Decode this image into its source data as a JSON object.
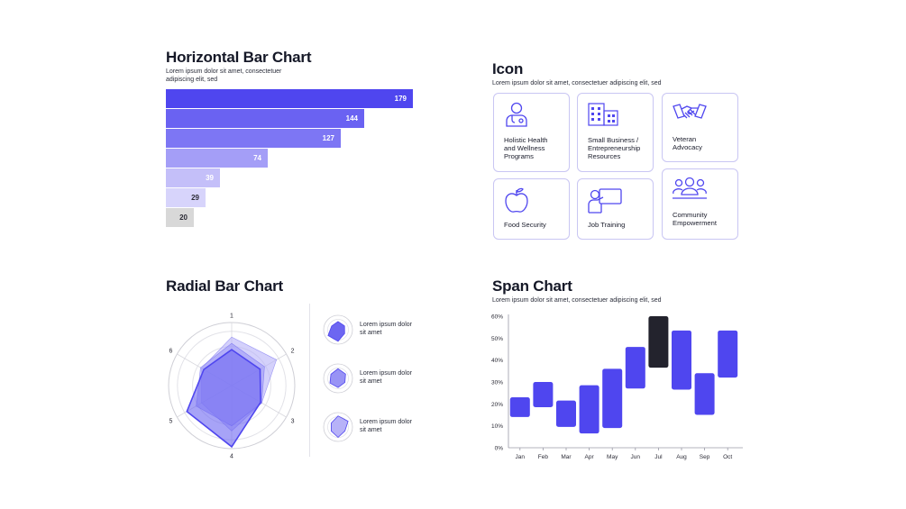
{
  "hbar": {
    "title": "Horizontal Bar Chart",
    "subtitle_1": "Lorem ipsum dolor sit amet, consectetuer",
    "subtitle_2": "adipiscing elit, sed"
  },
  "icon_section": {
    "title": "Icon",
    "subtitle": "Lorem ipsum dolor sit amet, consectetuer adipiscing elit, sed",
    "cards": [
      {
        "icon": "doctor-icon",
        "l1": "Holistic Health",
        "l2": "and Wellness",
        "l3": "Programs"
      },
      {
        "icon": "buildings-icon",
        "l1": "Small Business /",
        "l2": "Entrepreneurship",
        "l3": "Resources"
      },
      {
        "icon": "handshake-icon",
        "l1": "Veteran",
        "l2": "Advocacy",
        "l3": ""
      },
      {
        "icon": "apple-icon",
        "l1": "Food Security",
        "l2": "",
        "l3": ""
      },
      {
        "icon": "presentation-icon",
        "l1": "Job Training",
        "l2": "",
        "l3": ""
      },
      {
        "icon": "community-icon",
        "l1": "Community",
        "l2": "Empowerment",
        "l3": ""
      }
    ]
  },
  "radial": {
    "title": "Radial Bar Chart",
    "legend": [
      {
        "l1": "Lorem ipsum dolor",
        "l2": "sit amet"
      },
      {
        "l1": "Lorem ipsum dolor",
        "l2": "sit amet"
      },
      {
        "l1": "Lorem ipsum dolor",
        "l2": "sit amet"
      }
    ]
  },
  "span": {
    "title": "Span Chart",
    "subtitle": "Lorem ipsum dolor sit amet, consectetuer adipiscing elit, sed"
  },
  "colors": {
    "accent": "#4f46ef",
    "dark": "#23232d",
    "bar_shades": [
      "#4f46ef",
      "#6a62f2",
      "#7d76f4",
      "#a49ef7",
      "#c4bff9",
      "#d7d4fb",
      "#d8d8d8"
    ],
    "radar_fills": [
      "#b7b2f8",
      "#9893f5",
      "#6d66f1"
    ]
  },
  "chart_data": [
    {
      "type": "bar",
      "orientation": "horizontal",
      "title": "Horizontal Bar Chart",
      "values": [
        179,
        144,
        127,
        74,
        39,
        29,
        20
      ]
    },
    {
      "type": "radar",
      "title": "Radial Bar Chart",
      "axes": [
        "1",
        "2",
        "3",
        "4",
        "5",
        "6"
      ],
      "series": [
        {
          "values": [
            0.77,
            0.82,
            0.55,
            0.72,
            0.55,
            0.55
          ]
        },
        {
          "values": [
            0.67,
            0.6,
            0.55,
            0.64,
            0.65,
            0.57
          ]
        },
        {
          "values": [
            0.57,
            0.52,
            0.53,
            0.97,
            0.82,
            0.51
          ]
        }
      ],
      "rmax": 1
    },
    {
      "type": "span",
      "title": "Span Chart",
      "categories": [
        "Jan",
        "Feb",
        "Mar",
        "Apr",
        "May",
        "Jun",
        "Jul",
        "Aug",
        "Sep",
        "Oct"
      ],
      "ranges": [
        [
          14,
          23
        ],
        [
          18.5,
          30
        ],
        [
          9.5,
          21.5
        ],
        [
          6.5,
          28.5
        ],
        [
          9,
          36
        ],
        [
          27,
          46
        ],
        [
          36.5,
          60
        ],
        [
          26.5,
          53.5
        ],
        [
          15,
          34
        ],
        [
          32,
          53.5
        ]
      ],
      "highlight": "Jul",
      "yticks": [
        "0%",
        "10%",
        "20%",
        "30%",
        "40%",
        "50%",
        "60%"
      ],
      "ylim": [
        0,
        60
      ]
    }
  ]
}
